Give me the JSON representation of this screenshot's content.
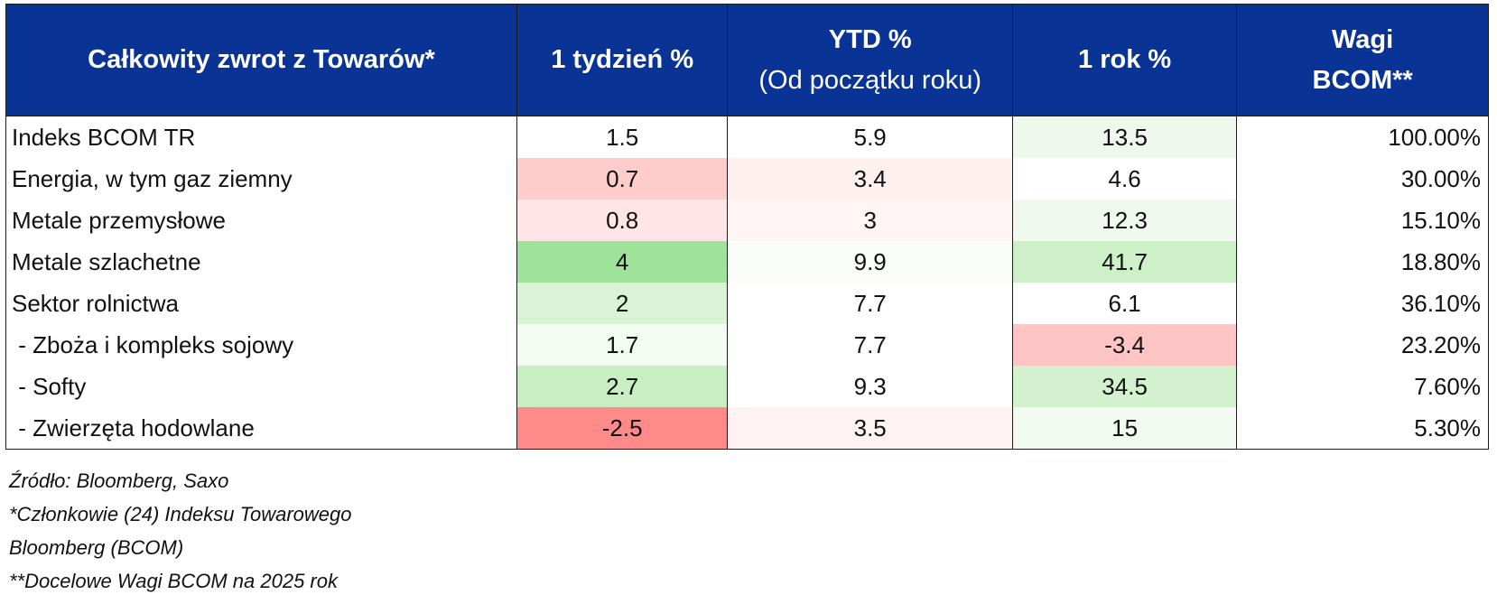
{
  "table": {
    "headers": {
      "col1": "Całkowity zwrot z Towarów*",
      "col2": "1 tydzień %",
      "col3_main": "YTD %",
      "col3_sub": "(Od początku roku)",
      "col4": "1 rok %",
      "col5_line1": "Wagi",
      "col5_line2": "BCOM**"
    },
    "rows": [
      {
        "name": "Indeks BCOM TR",
        "week": "1.5",
        "ytd": "5.9",
        "year": "13.5",
        "weight": "100.00%"
      },
      {
        "name": "Energia, w tym gaz ziemny",
        "week": "0.7",
        "ytd": "3.4",
        "year": "4.6",
        "weight": "30.00%"
      },
      {
        "name": "Metale przemysłowe",
        "week": "0.8",
        "ytd": "3",
        "year": "12.3",
        "weight": "15.10%"
      },
      {
        "name": "Metale szlachetne",
        "week": "4",
        "ytd": "9.9",
        "year": "41.7",
        "weight": "18.80%"
      },
      {
        "name": "Sektor rolnictwa",
        "week": "2",
        "ytd": "7.7",
        "year": "6.1",
        "weight": "36.10%"
      },
      {
        "name": " - Zboża i kompleks sojowy",
        "week": "1.7",
        "ytd": "7.7",
        "year": "-3.4",
        "weight": "23.20%"
      },
      {
        "name": " - Softy",
        "week": "2.7",
        "ytd": "9.3",
        "year": "34.5",
        "weight": "7.60%"
      },
      {
        "name": " - Zwierzęta hodowlane",
        "week": "-2.5",
        "ytd": "3.5",
        "year": "15",
        "weight": "5.30%"
      }
    ],
    "cell_colors": [
      {
        "week": "#ffffff",
        "ytd": "#ffffff",
        "year": "#eef8ec"
      },
      {
        "week": "#ffcccc",
        "ytd": "#fff0f0",
        "year": "#ffffff"
      },
      {
        "week": "#ffe5e5",
        "ytd": "#fff5f5",
        "year": "#f0f9ee"
      },
      {
        "week": "#9fe39b",
        "ytd": "#fafdf9",
        "year": "#cdf0c9"
      },
      {
        "week": "#daf3d6",
        "ytd": "#ffffff",
        "year": "#ffffff"
      },
      {
        "week": "#f4fbf2",
        "ytd": "#ffffff",
        "year": "#ffc4c4"
      },
      {
        "week": "#c9eec4",
        "ytd": "#ffffff",
        "year": "#d3f1cf"
      },
      {
        "week": "#ff8a8a",
        "ytd": "#fff2f2",
        "year": "#f2faf1"
      }
    ],
    "header_color": "#0a3396"
  },
  "footnotes": {
    "source": "Źródło: Bloomberg, Saxo",
    "members_line1": "*Członkowie (24) Indeksu Towarowego",
    "members_line2": "Bloomberg (BCOM)",
    "weights": "**Docelowe Wagi BCOM na 2025 rok"
  }
}
